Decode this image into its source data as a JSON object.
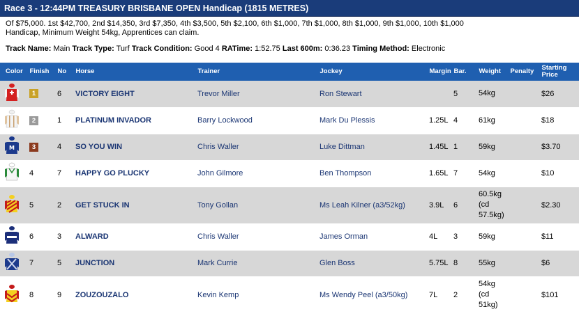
{
  "race": {
    "title": "Race 3 - 12:44PM TREASURY BRISBANE OPEN Handicap (1815 METRES)",
    "prize_text": "Of $75,000. 1st $42,700, 2nd $14,350, 3rd $7,350, 4th $3,500, 5th $2,100, 6th $1,000, 7th $1,000, 8th $1,000, 9th $1,000, 10th $1,000 Handicap, Minimum Weight 54kg, Apprentices can claim."
  },
  "track": {
    "track_name_label": "Track Name:",
    "track_name": "Main",
    "track_type_label": "Track Type:",
    "track_type": "Turf",
    "condition_label": "Track Condition:",
    "condition": "Good 4",
    "ratime_label": "RATime:",
    "ratime": "1:52.75",
    "last600_label": "Last 600m:",
    "last600": "0:36.23",
    "timing_label": "Timing Method:",
    "timing": "Electronic"
  },
  "table": {
    "headers": {
      "color": "Color",
      "finish": "Finish",
      "no": "No",
      "horse": "Horse",
      "trainer": "Trainer",
      "jockey": "Jockey",
      "margin": "Margin",
      "bar": "Bar.",
      "weight": "Weight",
      "penalty": "Penalty",
      "sp_line1": "Starting",
      "sp_line2": "Price"
    },
    "rows": [
      {
        "finish": "1",
        "no": "6",
        "horse": "VICTORY EIGHT",
        "trainer": "Trevor Miller",
        "jockey": "Ron Stewart",
        "margin": "",
        "bar": "5",
        "weight": "54kg",
        "penalty": "",
        "sp": "$26"
      },
      {
        "finish": "2",
        "no": "1",
        "horse": "PLATINUM INVADOR",
        "trainer": "Barry Lockwood",
        "jockey": "Mark Du Plessis",
        "margin": "1.25L",
        "bar": "4",
        "weight": "61kg",
        "penalty": "",
        "sp": "$18"
      },
      {
        "finish": "3",
        "no": "4",
        "horse": "SO YOU WIN",
        "trainer": "Chris Waller",
        "jockey": "Luke Dittman",
        "margin": "1.45L",
        "bar": "1",
        "weight": "59kg",
        "penalty": "",
        "sp": "$3.70"
      },
      {
        "finish": "4",
        "no": "7",
        "horse": "HAPPY GO PLUCKY",
        "trainer": "John Gilmore",
        "jockey": "Ben Thompson",
        "margin": "1.65L",
        "bar": "7",
        "weight": "54kg",
        "penalty": "",
        "sp": "$10"
      },
      {
        "finish": "5",
        "no": "2",
        "horse": "GET STUCK IN",
        "trainer": "Tony Gollan",
        "jockey": "Ms Leah Kilner (a3/52kg)",
        "margin": "3.9L",
        "bar": "6",
        "weight": "60.5kg",
        "weight2": "(cd",
        "weight3": "57.5kg)",
        "penalty": "",
        "sp": "$2.30"
      },
      {
        "finish": "6",
        "no": "3",
        "horse": "ALWARD",
        "trainer": "Chris Waller",
        "jockey": "James Orman",
        "margin": "4L",
        "bar": "3",
        "weight": "59kg",
        "penalty": "",
        "sp": "$11"
      },
      {
        "finish": "7",
        "no": "5",
        "horse": "JUNCTION",
        "trainer": "Mark Currie",
        "jockey": "Glen Boss",
        "margin": "5.75L",
        "bar": "8",
        "weight": "55kg",
        "penalty": "",
        "sp": "$6"
      },
      {
        "finish": "8",
        "no": "9",
        "horse": "ZOUZOUZALO",
        "trainer": "Kevin Kemp",
        "jockey": "Ms Wendy Peel (a3/50kg)",
        "margin": "7L",
        "bar": "2",
        "weight": "54kg",
        "weight2": "(cd",
        "weight3": "51kg)",
        "penalty": "",
        "sp": "$101"
      }
    ]
  },
  "colors": {
    "header_bg": "#1a3c7a",
    "table_header_bg": "#1f5fb0",
    "link_blue": "#1a3573",
    "badge_gold": "#c9a227",
    "badge_silver": "#9a9a9a",
    "badge_bronze": "#8b3a1e"
  },
  "silks": [
    "red-white-cross",
    "white-grey-stripes",
    "navy-m",
    "white-green",
    "yellow-red-diagonal",
    "navy-white-band",
    "navy-cross",
    "yellow-red-chevron"
  ]
}
